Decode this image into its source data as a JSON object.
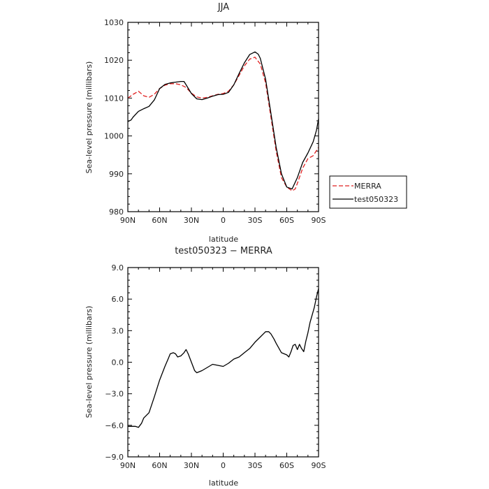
{
  "chart_data": [
    {
      "type": "line",
      "title": "JJA",
      "xlabel": "latitude",
      "ylabel": "Sea-level pressure (millibars)",
      "xlim": [
        90,
        -90
      ],
      "ylim": [
        980,
        1030
      ],
      "xticks": [
        90,
        60,
        30,
        0,
        -30,
        -60,
        -90
      ],
      "xtick_labels": [
        "90N",
        "60N",
        "30N",
        "0",
        "30S",
        "60S",
        "90S"
      ],
      "yticks": [
        980,
        990,
        1000,
        1010,
        1020,
        1030
      ],
      "ytick_labels": [
        "980",
        "990",
        "1000",
        "1010",
        "1020",
        "1030"
      ],
      "legend": {
        "placement": "right",
        "entries": [
          "MERRA",
          "test050323"
        ]
      },
      "series": [
        {
          "name": "MERRA",
          "color": "#e02020",
          "dash": true,
          "x": [
            90,
            85,
            80,
            75,
            70,
            65,
            60,
            55,
            50,
            45,
            40,
            35,
            30,
            25,
            20,
            15,
            10,
            5,
            0,
            -5,
            -10,
            -15,
            -20,
            -25,
            -30,
            -35,
            -40,
            -45,
            -50,
            -55,
            -60,
            -65,
            -68,
            -70,
            -75,
            -80,
            -85,
            -90
          ],
          "y": [
            1010,
            1011,
            1011.8,
            1010.6,
            1010.2,
            1011,
            1012.5,
            1013.4,
            1013.8,
            1013.8,
            1013.5,
            1012.8,
            1011.3,
            1010.3,
            1010,
            1010.2,
            1010.6,
            1011,
            1011.2,
            1011.8,
            1013.5,
            1016,
            1018.5,
            1020.3,
            1020.8,
            1019,
            1014,
            1005,
            996,
            989,
            986.5,
            985.5,
            986,
            987.5,
            991.5,
            994,
            994.8,
            997
          ]
        },
        {
          "name": "test050323",
          "color": "#000000",
          "dash": false,
          "x": [
            90,
            87,
            85,
            80,
            75,
            70,
            65,
            60,
            55,
            50,
            45,
            40,
            37,
            35,
            30,
            25,
            20,
            15,
            10,
            5,
            0,
            -5,
            -10,
            -15,
            -20,
            -25,
            -30,
            -33,
            -35,
            -40,
            -45,
            -50,
            -55,
            -60,
            -65,
            -70,
            -75,
            -80,
            -85,
            -88,
            -90
          ],
          "y": [
            1003.8,
            1004.2,
            1005,
            1006.5,
            1007.2,
            1007.8,
            1009.5,
            1012.5,
            1013.6,
            1014,
            1014.2,
            1014.4,
            1014.4,
            1013.5,
            1011.2,
            1009.8,
            1009.6,
            1010,
            1010.5,
            1010.9,
            1011,
            1011.5,
            1013.5,
            1016.5,
            1019.3,
            1021.5,
            1022.2,
            1021.6,
            1020.5,
            1015,
            1006,
            997,
            990,
            986.5,
            986,
            989,
            993,
            995.5,
            998.5,
            1001.5,
            1004.5
          ]
        }
      ]
    },
    {
      "type": "line",
      "title": "test050323 − MERRA",
      "xlabel": "latitude",
      "ylabel": "Sea-level pressure (millibars)",
      "xlim": [
        90,
        -90
      ],
      "ylim": [
        -9,
        9
      ],
      "xticks": [
        90,
        60,
        30,
        0,
        -30,
        -60,
        -90
      ],
      "xtick_labels": [
        "90N",
        "60N",
        "30N",
        "0",
        "30S",
        "60S",
        "90S"
      ],
      "yticks": [
        -9,
        -6,
        -3,
        0,
        3,
        6,
        9
      ],
      "ytick_labels": [
        "−9.0",
        "−6.0",
        "−3.0",
        "0.0",
        "3.0",
        "6.0",
        "9.0"
      ],
      "series": [
        {
          "name": "test050323 − MERRA",
          "color": "#000000",
          "dash": false,
          "x": [
            90,
            85,
            83,
            80,
            77,
            75,
            70,
            65,
            60,
            55,
            52,
            50,
            47,
            45,
            43,
            40,
            37,
            35,
            33,
            30,
            27,
            25,
            20,
            15,
            10,
            5,
            0,
            -5,
            -10,
            -15,
            -20,
            -25,
            -30,
            -35,
            -40,
            -43,
            -45,
            -48,
            -50,
            -55,
            -60,
            -62,
            -64,
            -66,
            -68,
            -70,
            -72,
            -74,
            -76,
            -78,
            -80,
            -82,
            -84,
            -86,
            -88,
            -90
          ],
          "y": [
            -6.1,
            -6.1,
            -6.1,
            -6.2,
            -5.8,
            -5.3,
            -4.8,
            -3.3,
            -1.7,
            -0.4,
            0.3,
            0.8,
            0.9,
            0.8,
            0.5,
            0.6,
            0.9,
            1.2,
            0.8,
            0.0,
            -0.8,
            -1.0,
            -0.8,
            -0.5,
            -0.2,
            -0.3,
            -0.4,
            -0.1,
            0.3,
            0.5,
            0.9,
            1.3,
            1.9,
            2.4,
            2.9,
            2.9,
            2.7,
            2.2,
            1.8,
            0.9,
            0.7,
            0.5,
            1.0,
            1.6,
            1.7,
            1.2,
            1.7,
            1.3,
            1.0,
            2.0,
            2.8,
            3.8,
            4.5,
            5.2,
            6.2,
            7.0
          ]
        }
      ]
    }
  ]
}
